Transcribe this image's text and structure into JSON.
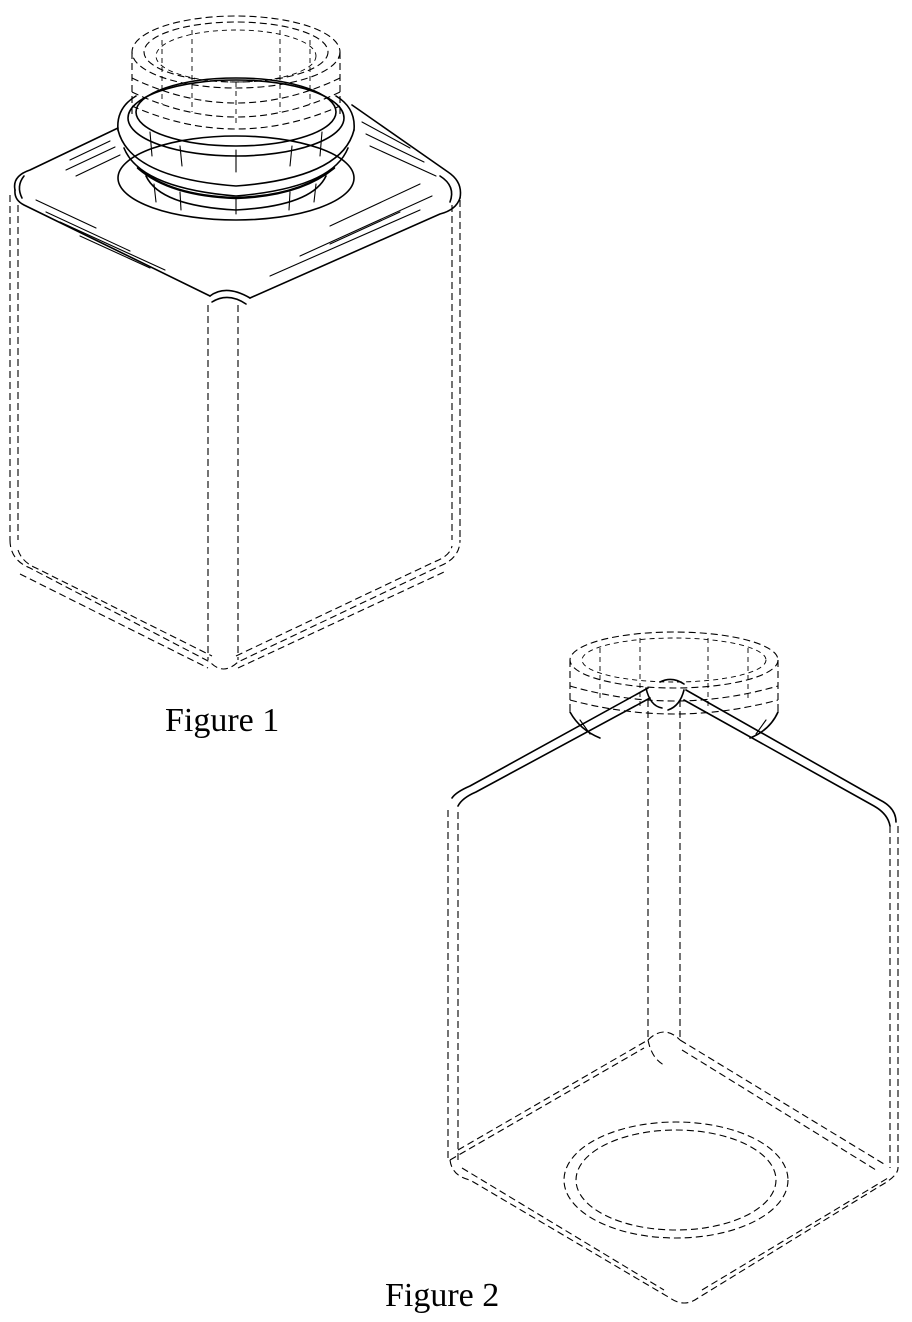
{
  "figures": [
    {
      "caption": "Figure 1"
    },
    {
      "caption": "Figure 2"
    }
  ]
}
